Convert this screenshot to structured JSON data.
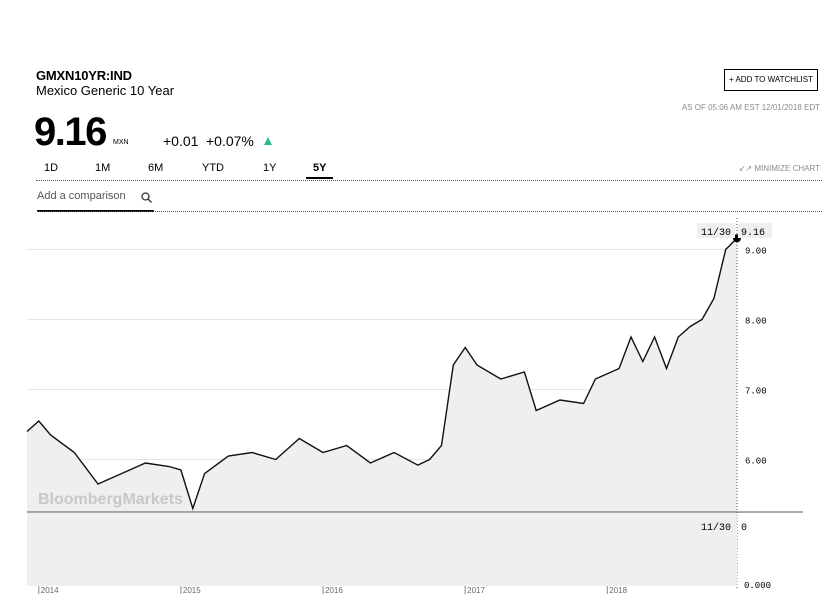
{
  "header": {
    "ticker": "GMXN10YR:IND",
    "name": "Mexico Generic 10 Year",
    "watch_label": "+ ADD TO WATCHLIST",
    "asof": "AS OF 05:06 AM EST 12/01/2018 EDT",
    "price": "9.16",
    "unit": "MXN",
    "change": "+0.01",
    "change_pct": "+0.07%",
    "up_color": "#2bba8b"
  },
  "tabs": [
    {
      "label": "1D",
      "active": false
    },
    {
      "label": "1M",
      "active": false
    },
    {
      "label": "6M",
      "active": false
    },
    {
      "label": "YTD",
      "active": false
    },
    {
      "label": "1Y",
      "active": false
    },
    {
      "label": "5Y",
      "active": true
    }
  ],
  "minimize_label": "MINIMIZE CHART",
  "compare_placeholder": "Add a comparison",
  "watermark": "BloombergMarkets",
  "chart_data": {
    "type": "area",
    "x_tick_labels": [
      "2014",
      "2015",
      "2016",
      "2017",
      "2018"
    ],
    "ylim": [
      5.25,
      9.45
    ],
    "y_ticks": [
      "9.00",
      "8.00",
      "7.00",
      "6.00"
    ],
    "x": [
      "2013-12",
      "2014-01",
      "2014-02",
      "2014-04",
      "2014-06",
      "2014-08",
      "2014-10",
      "2014-12",
      "2015-01",
      "2015-02",
      "2015-03",
      "2015-05",
      "2015-07",
      "2015-09",
      "2015-11",
      "2016-01",
      "2016-03",
      "2016-05",
      "2016-07",
      "2016-09",
      "2016-10",
      "2016-11",
      "2016-12",
      "2017-01",
      "2017-02",
      "2017-04",
      "2017-06",
      "2017-07",
      "2017-09",
      "2017-11",
      "2017-12",
      "2018-02",
      "2018-03",
      "2018-04",
      "2018-05",
      "2018-06",
      "2018-07",
      "2018-08",
      "2018-09",
      "2018-10",
      "2018-11",
      "2018-11-30"
    ],
    "values": [
      6.4,
      6.55,
      6.35,
      6.1,
      5.65,
      5.8,
      5.95,
      5.9,
      5.85,
      5.3,
      5.8,
      6.05,
      6.1,
      6.0,
      6.3,
      6.1,
      6.2,
      5.95,
      6.1,
      5.92,
      6.0,
      6.2,
      7.35,
      7.6,
      7.35,
      7.15,
      7.25,
      6.7,
      6.85,
      6.8,
      7.15,
      7.3,
      7.75,
      7.4,
      7.75,
      7.3,
      7.75,
      7.9,
      8.0,
      8.3,
      9.0,
      9.16
    ],
    "last_date_label": "11/30",
    "last_value_label": "9.16",
    "lower_pane": {
      "last_date_label": "11/30",
      "last_value_label": "0",
      "y_tick": "0.000"
    }
  }
}
